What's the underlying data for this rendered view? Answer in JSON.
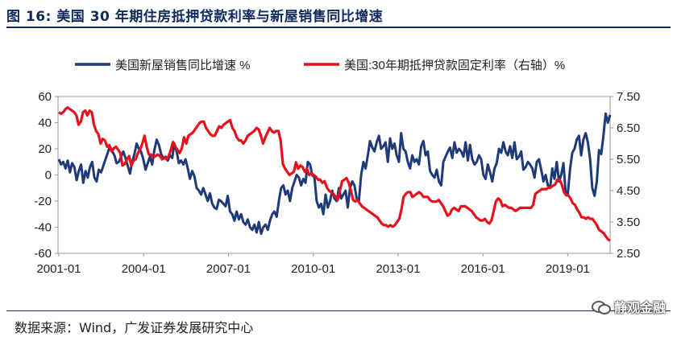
{
  "figure": {
    "title": "图 16:  美国 30 年期住房抵押贷款利率与新屋销售同比增速",
    "source": "数据来源：Wind，广发证券发展研究中心",
    "watermark": "静观金融"
  },
  "chart_data": {
    "type": "line",
    "title": "",
    "xlabel": "",
    "ylabel": "",
    "x_start": "2001-01",
    "x_end": "2020-07",
    "x_tick_labels": [
      "2001-01",
      "2004-01",
      "2007-01",
      "2010-01",
      "2013-01",
      "2016-01",
      "2019-01"
    ],
    "y_left": {
      "ylim": [
        -60,
        60
      ],
      "ticks": [
        "60",
        "40",
        "20",
        "0",
        "-20",
        "-40",
        "-60"
      ]
    },
    "y_right": {
      "ylim": [
        2.5,
        7.5
      ],
      "ticks": [
        "7.50",
        "6.50",
        "5.50",
        "4.50",
        "3.50",
        "2.50"
      ]
    },
    "grid": false,
    "legend_position": "top",
    "series": [
      {
        "name": "美国新屋销售同比增速 %",
        "axis": "left",
        "color": "#1f3a78",
        "values": [
          12,
          8,
          10,
          5,
          11,
          2,
          9,
          6,
          -4,
          3,
          8,
          -6,
          3,
          -2,
          6,
          10,
          -2,
          -5,
          4,
          2,
          7,
          12,
          17,
          22,
          18,
          15,
          9,
          10,
          14,
          18,
          13,
          7,
          1,
          10,
          16,
          24,
          20,
          18,
          12,
          4,
          9,
          14,
          8,
          19,
          27,
          23,
          16,
          13,
          14,
          11,
          15,
          13,
          24,
          18,
          9,
          11,
          8,
          12,
          5,
          -3,
          3,
          -1,
          -10,
          -12,
          -15,
          -10,
          -15,
          -20,
          -14,
          -22,
          -25,
          -26,
          -19,
          -20,
          -22,
          -24,
          -16,
          -28,
          -30,
          -35,
          -28,
          -34,
          -30,
          -36,
          -38,
          -34,
          -40,
          -42,
          -38,
          -44,
          -36,
          -45,
          -40,
          -38,
          -42,
          -35,
          -30,
          -28,
          -32,
          -20,
          -10,
          -8,
          -15,
          -12,
          -20,
          -10,
          -5,
          0,
          -2,
          -8,
          -3,
          -6,
          10,
          8,
          0,
          -2,
          -20,
          -25,
          -22,
          -30,
          -15,
          -25,
          -20,
          -12,
          -18,
          -20,
          -10,
          -18,
          -15,
          -12,
          -25,
          -10,
          -5,
          -8,
          -18,
          -20,
          0,
          10,
          5,
          15,
          26,
          21,
          18,
          25,
          30,
          20,
          22,
          25,
          10,
          28,
          20,
          24,
          15,
          10,
          32,
          20,
          18,
          10,
          5,
          15,
          10,
          12,
          8,
          22,
          26,
          15,
          18,
          3,
          0,
          -2,
          4,
          -5,
          -8,
          10,
          14,
          18,
          21,
          13,
          25,
          17,
          20,
          18,
          14,
          25,
          11,
          23,
          12,
          8,
          10,
          15,
          12,
          0,
          -3,
          8,
          2,
          -5,
          5,
          9,
          20,
          17,
          25,
          18,
          15,
          22,
          13,
          25,
          12,
          14,
          18,
          4,
          6,
          10,
          8,
          5,
          -2,
          10,
          12,
          4,
          -5,
          0,
          -8,
          -10,
          5,
          -3,
          10,
          -5,
          0,
          9,
          -13,
          -14,
          5,
          17,
          20,
          27,
          30,
          15,
          27,
          32,
          25,
          12,
          -10,
          -16,
          -5,
          19,
          16,
          30,
          47,
          40,
          46
        ]
      },
      {
        "name": "美国:30年期抵押贷款固定利率（右轴）%",
        "axis": "right",
        "color": "#e8101c",
        "values": [
          7.0,
          6.95,
          7.0,
          7.1,
          7.15,
          7.1,
          7.05,
          7.0,
          6.9,
          6.6,
          6.7,
          7.0,
          7.05,
          6.9,
          7.05,
          7.0,
          6.6,
          6.4,
          6.3,
          6.0,
          6.15,
          6.1,
          5.9,
          5.95,
          5.75,
          5.85,
          5.9,
          5.8,
          5.7,
          5.3,
          5.35,
          5.5,
          5.6,
          5.3,
          5.45,
          5.5,
          5.7,
          5.8,
          6.0,
          6.25,
          5.9,
          5.65,
          5.65,
          5.55,
          5.6,
          5.65,
          5.6,
          5.5,
          5.55,
          5.5,
          5.6,
          5.8,
          6.05,
          5.9,
          5.8,
          5.7,
          5.85,
          6.2,
          6.0,
          6.25,
          6.3,
          6.35,
          6.45,
          6.55,
          6.65,
          6.7,
          6.7,
          6.5,
          6.4,
          6.3,
          6.25,
          6.25,
          6.4,
          6.55,
          6.5,
          6.6,
          6.65,
          6.7,
          6.75,
          6.5,
          6.4,
          6.2,
          6.1,
          6.1,
          6.0,
          6.1,
          6.25,
          6.3,
          6.35,
          6.4,
          6.5,
          6.45,
          6.25,
          6.0,
          6.2,
          6.35,
          6.5,
          6.4,
          6.35,
          6.4,
          6.4,
          6.1,
          5.35,
          5.2,
          5.1,
          5.0,
          5.05,
          5.1,
          5.4,
          5.2,
          5.3,
          5.25,
          5.1,
          5.2,
          5.0,
          5.05,
          5.0,
          4.95,
          4.85,
          4.85,
          4.75,
          4.8,
          4.6,
          4.5,
          4.45,
          4.4,
          4.3,
          4.2,
          4.5,
          4.8,
          4.85,
          4.9,
          4.75,
          4.5,
          4.2,
          4.15,
          4.2,
          4.1,
          4.0,
          3.95,
          3.9,
          3.85,
          3.8,
          3.75,
          3.7,
          3.65,
          3.55,
          3.45,
          3.4,
          3.4,
          3.35,
          3.4,
          3.35,
          3.4,
          3.5,
          3.6,
          3.9,
          4.3,
          4.4,
          4.45,
          4.45,
          4.3,
          4.35,
          4.4,
          4.45,
          4.4,
          4.3,
          4.3,
          4.3,
          4.2,
          4.15,
          4.15,
          4.15,
          4.2,
          4.1,
          4.0,
          3.85,
          3.7,
          3.75,
          3.9,
          3.95,
          3.9,
          3.85,
          4.0,
          4.0,
          4.0,
          3.95,
          3.9,
          3.85,
          3.75,
          3.65,
          3.6,
          3.55,
          3.55,
          3.6,
          3.5,
          3.45,
          3.55,
          3.85,
          4.15,
          4.25,
          4.2,
          4.0,
          4.05,
          4.0,
          3.95,
          3.95,
          3.9,
          3.85,
          3.9,
          3.95,
          3.95,
          3.95,
          3.95,
          3.95,
          3.95,
          4.05,
          4.4,
          4.45,
          4.5,
          4.55,
          4.55,
          4.55,
          4.6,
          4.6,
          4.65,
          4.7,
          4.85,
          4.85,
          4.7,
          4.45,
          4.35,
          4.35,
          4.25,
          4.1,
          4.05,
          3.9,
          3.8,
          3.65,
          3.65,
          3.6,
          3.65,
          3.6,
          3.6,
          3.5,
          3.4,
          3.25,
          3.2,
          3.15,
          3.05,
          2.95,
          2.9
        ]
      }
    ]
  }
}
